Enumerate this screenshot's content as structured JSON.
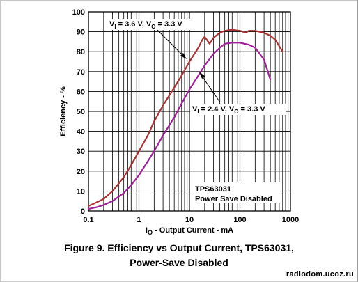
{
  "caption": {
    "line1": "Figure 9. Efficiency vs Output Current, TPS63031,",
    "line2": "Power-Save Disabled"
  },
  "watermark": "radiodom.ucoz.ru",
  "chart_data": {
    "type": "line",
    "title": "",
    "xlabel": "IO - Output Current - mA",
    "xlabel_parts": {
      "main": "I",
      "sub": "O",
      "rest": " - Output Current - mA"
    },
    "ylabel": "Efficiency - %",
    "xscale": "log",
    "xlim": [
      0.1,
      1000
    ],
    "ylim": [
      0,
      100
    ],
    "xticks": [
      0.1,
      1,
      10,
      100,
      1000
    ],
    "xtick_labels": [
      "0.1",
      "1",
      "10",
      "100",
      "1000"
    ],
    "yticks": [
      0,
      10,
      20,
      30,
      40,
      50,
      60,
      70,
      80,
      90,
      100
    ],
    "ytick_labels": [
      "0",
      "10",
      "20",
      "30",
      "40",
      "50",
      "60",
      "70",
      "80",
      "90",
      "100"
    ],
    "grid": true,
    "series": [
      {
        "label_parts": {
          "a": "V",
          "a_sub": "I",
          "b": " = 3.6 V, V",
          "b_sub": "O",
          "c": " = 3.3 V"
        },
        "color": "#a83232",
        "x": [
          0.1,
          0.15,
          0.2,
          0.3,
          0.5,
          0.7,
          1,
          1.5,
          2,
          3,
          5,
          7,
          10,
          15,
          18,
          20,
          22,
          25,
          30,
          40,
          50,
          70,
          100,
          130,
          150,
          200,
          300,
          400,
          500,
          700
        ],
        "y": [
          2.5,
          4.5,
          6,
          10,
          17,
          23,
          30,
          38,
          45,
          53,
          62,
          68,
          75,
          82,
          86,
          87.5,
          86,
          84,
          87,
          89.5,
          90.5,
          91,
          90.5,
          89.5,
          90.5,
          90.5,
          89.5,
          88,
          86,
          80
        ]
      },
      {
        "label_parts": {
          "a": "V",
          "a_sub": "I",
          "b": " = 2.4 V, V",
          "b_sub": "O",
          "c": " = 3.3 V"
        },
        "color": "#a0209a",
        "x": [
          0.1,
          0.15,
          0.2,
          0.3,
          0.5,
          0.7,
          1,
          1.5,
          2,
          3,
          5,
          7,
          10,
          15,
          20,
          30,
          40,
          50,
          70,
          100,
          150,
          200,
          300,
          400
        ],
        "y": [
          1,
          2,
          3,
          5,
          9,
          13,
          18,
          25,
          30,
          38,
          47,
          54,
          61,
          68,
          73,
          79,
          82,
          84,
          84.5,
          84.5,
          83.5,
          82,
          76,
          66
        ]
      }
    ],
    "annotations": [
      {
        "text": "TPS63031"
      },
      {
        "text": "Power Save Disabled"
      }
    ]
  }
}
